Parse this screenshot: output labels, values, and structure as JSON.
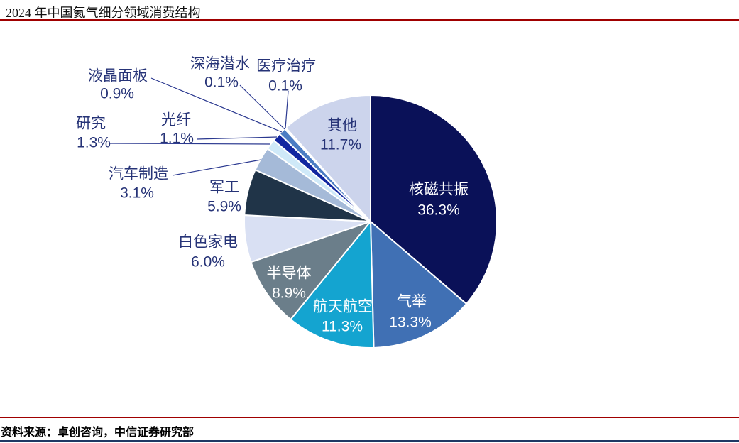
{
  "header": {
    "title": "2024 年中国氦气细分领域消费结构"
  },
  "footer": {
    "source": "资料来源：卓创咨询，中信证券研究部"
  },
  "colors": {
    "accent_red": "#a00000",
    "label_navy": "#263377",
    "leader_navy": "#2b3990",
    "bottom_navy": "#1f3864",
    "label_white": "#ffffff"
  },
  "chart_data": {
    "type": "pie",
    "title": "2024 年中国氦气细分领域消费结构",
    "units": "%",
    "legend_position": "none",
    "total": 100.0,
    "segments": [
      {
        "label": "核磁共振",
        "value": 36.3,
        "pct_label": "36.3%",
        "color": "#0a1158"
      },
      {
        "label": "气举",
        "value": 13.3,
        "pct_label": "13.3%",
        "color": "#4070b4"
      },
      {
        "label": "航天航空",
        "value": 11.3,
        "pct_label": "11.3%",
        "color": "#14a4d0"
      },
      {
        "label": "半导体",
        "value": 8.9,
        "pct_label": "8.9%",
        "color": "#6b7e8a"
      },
      {
        "label": "白色家电",
        "value": 6.0,
        "pct_label": "6.0%",
        "color": "#d9e0f3"
      },
      {
        "label": "军工",
        "value": 5.9,
        "pct_label": "5.9%",
        "color": "#203448"
      },
      {
        "label": "汽车制造",
        "value": 3.1,
        "pct_label": "3.1%",
        "color": "#a5bad8"
      },
      {
        "label": "研究",
        "value": 1.3,
        "pct_label": "1.3%",
        "color": "#cfe9f8"
      },
      {
        "label": "光纤",
        "value": 1.1,
        "pct_label": "1.1%",
        "color": "#1126a0"
      },
      {
        "label": "液晶面板",
        "value": 0.9,
        "pct_label": "0.9%",
        "color": "#4b7cc3"
      },
      {
        "label": "深海潜水",
        "value": 0.1,
        "pct_label": "0.1%",
        "color": "#9dc3e6"
      },
      {
        "label": "医疗治疗",
        "value": 0.1,
        "pct_label": "0.1%",
        "color": "#2e5a9c"
      },
      {
        "label": "其他",
        "value": 11.7,
        "pct_label": "11.7%",
        "color": "#ccd4ec"
      }
    ]
  }
}
